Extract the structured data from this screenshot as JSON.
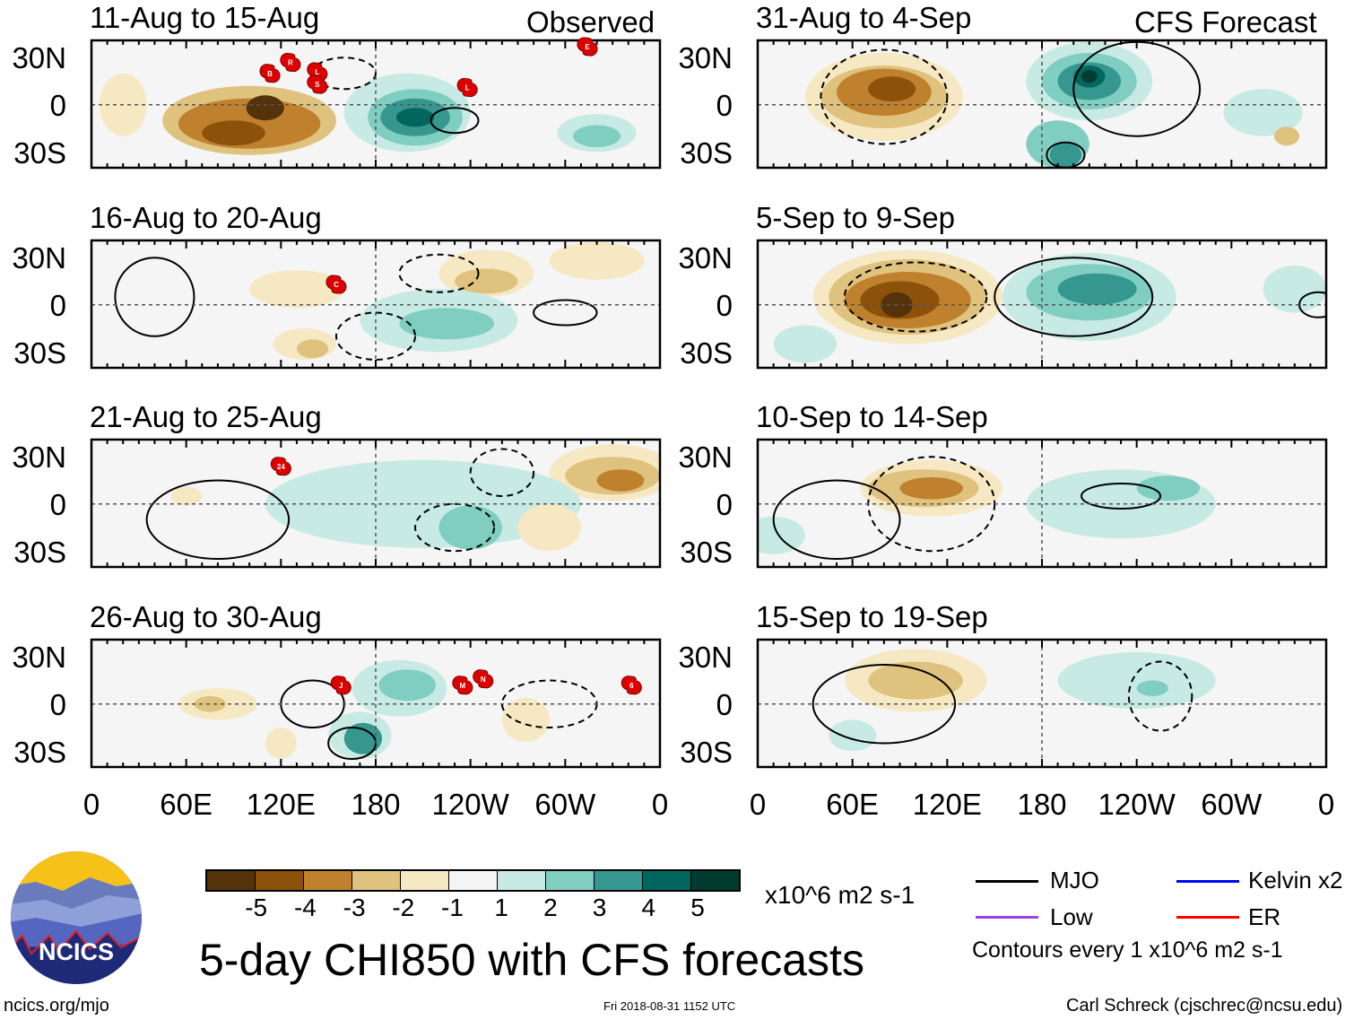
{
  "observed_label": "Observed",
  "forecast_label": "CFS Forecast",
  "chart_data": [
    {
      "type": "heatmap",
      "title": "11-Aug to 15-Aug",
      "column": "observed",
      "storms": [
        {
          "label": "B",
          "lon": 113,
          "lat": 20
        },
        {
          "label": "R",
          "lon": 126,
          "lat": 27
        },
        {
          "label": "L",
          "lon": 143,
          "lat": 21
        },
        {
          "label": "S",
          "lon": 143,
          "lat": 13
        },
        {
          "label": "L",
          "lon": 238,
          "lat": 11
        },
        {
          "label": "E",
          "lon": 314,
          "lat": 37
        }
      ]
    },
    {
      "type": "heatmap",
      "title": "16-Aug to 20-Aug",
      "column": "observed",
      "storms": [
        {
          "label": "C",
          "lon": 155,
          "lat": 13
        }
      ]
    },
    {
      "type": "heatmap",
      "title": "21-Aug to 25-Aug",
      "column": "observed",
      "storms": [
        {
          "label": "24",
          "lon": 120,
          "lat": 24
        }
      ]
    },
    {
      "type": "heatmap",
      "title": "26-Aug to 30-Aug",
      "column": "observed",
      "storms": [
        {
          "label": "J",
          "lon": 158,
          "lat": 12
        },
        {
          "label": "M",
          "lon": 235,
          "lat": 12
        },
        {
          "label": "N",
          "lon": 248,
          "lat": 16
        },
        {
          "label": "6",
          "lon": 342,
          "lat": 12
        }
      ]
    },
    {
      "type": "heatmap",
      "title": "31-Aug to 4-Sep",
      "column": "forecast",
      "storms": []
    },
    {
      "type": "heatmap",
      "title": "5-Sep to 9-Sep",
      "column": "forecast",
      "storms": []
    },
    {
      "type": "heatmap",
      "title": "10-Sep to 14-Sep",
      "column": "forecast",
      "storms": []
    },
    {
      "type": "heatmap",
      "title": "15-Sep to 19-Sep",
      "column": "forecast",
      "storms": []
    }
  ],
  "lat_ticks": [
    "30N",
    "0",
    "30S"
  ],
  "lon_ticks": [
    "0",
    "60E",
    "120E",
    "180",
    "120W",
    "60W",
    "0"
  ],
  "colorbar": {
    "colors": [
      "#54330a",
      "#8c510a",
      "#bf812d",
      "#dfc27d",
      "#f6e8c3",
      "#f5f5f5",
      "#c7eae5",
      "#80cdc1",
      "#35978f",
      "#01665e",
      "#003c30"
    ],
    "labels": [
      "-5",
      "-4",
      "-3",
      "-2",
      "-1",
      "1",
      "2",
      "3",
      "4",
      "5"
    ],
    "units": "x10^6 m2 s-1"
  },
  "legend": {
    "items": [
      {
        "label": "MJO",
        "color": "#000000"
      },
      {
        "label": "Kelvin x2",
        "color": "#0000ff"
      },
      {
        "label": "Low",
        "color": "#a040e0"
      },
      {
        "label": "ER",
        "color": "#ff0000"
      }
    ],
    "contours_note": "Contours every 1 x10^6 m2 s-1"
  },
  "main_title": "5-day CHI850 with CFS forecasts",
  "logo_text": "NCICS",
  "footer": {
    "url": "ncics.org/mjo",
    "timestamp": "Fri 2018-08-31 1152 UTC",
    "author": "Carl Schreck (cjschrec@ncsu.edu)"
  }
}
